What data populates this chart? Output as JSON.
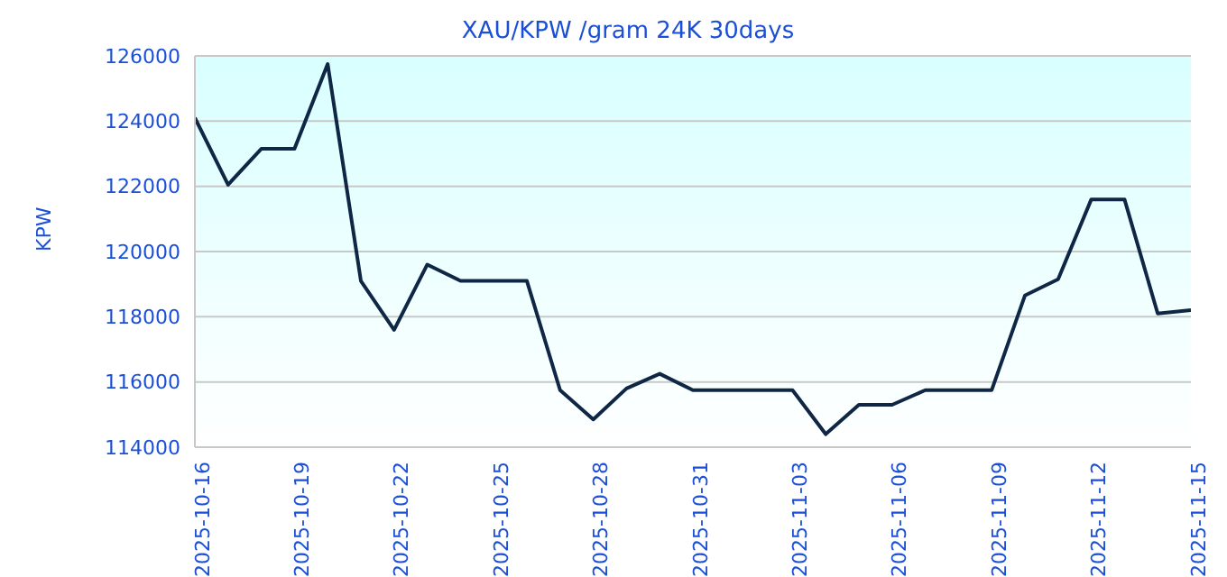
{
  "chart_data": {
    "type": "line",
    "title": "XAU/KPW /gram 24K 30days",
    "ylabel": "KPW",
    "x": [
      "2025-10-16",
      "2025-10-17",
      "2025-10-18",
      "2025-10-19",
      "2025-10-20",
      "2025-10-21",
      "2025-10-22",
      "2025-10-23",
      "2025-10-24",
      "2025-10-25",
      "2025-10-26",
      "2025-10-27",
      "2025-10-28",
      "2025-10-29",
      "2025-10-30",
      "2025-10-31",
      "2025-11-01",
      "2025-11-02",
      "2025-11-03",
      "2025-11-04",
      "2025-11-05",
      "2025-11-06",
      "2025-11-07",
      "2025-11-08",
      "2025-11-09",
      "2025-11-10",
      "2025-11-11",
      "2025-11-12",
      "2025-11-13",
      "2025-11-14",
      "2025-11-15"
    ],
    "series": [
      {
        "color": "#0f2745",
        "values": [
          124100,
          122050,
          123150,
          123150,
          125750,
          119100,
          117600,
          119600,
          119100,
          119100,
          119100,
          115750,
          114850,
          115800,
          116250,
          115750,
          115750,
          115750,
          115750,
          114400,
          115300,
          115300,
          115750,
          115750,
          115750,
          118650,
          119150,
          121600,
          121600,
          118100,
          118200
        ]
      }
    ],
    "xlim": [
      "2025-10-16",
      "2025-11-15"
    ],
    "xticks": [
      "2025-10-16",
      "2025-10-19",
      "2025-10-22",
      "2025-10-25",
      "2025-10-28",
      "2025-10-31",
      "2025-11-03",
      "2025-11-06",
      "2025-11-09",
      "2025-11-12",
      "2025-11-15"
    ],
    "ylim": [
      114000,
      126000
    ],
    "yticks": [
      114000,
      116000,
      118000,
      120000,
      122000,
      124000,
      126000
    ],
    "grid": "y",
    "legend": false,
    "marker": "none",
    "line_style": "solid"
  }
}
